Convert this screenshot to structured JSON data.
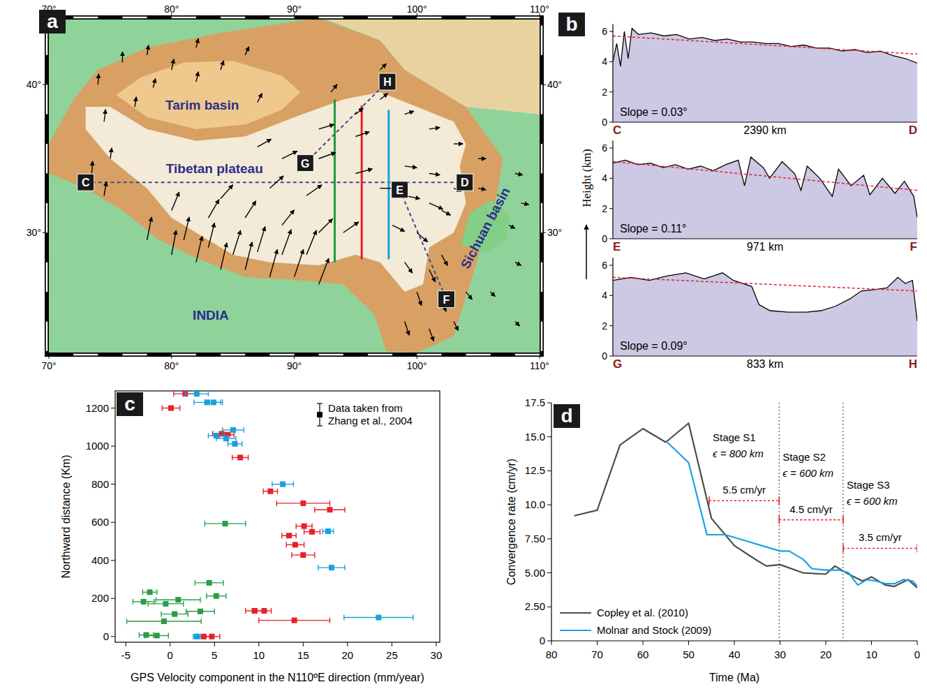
{
  "chart_data": [
    {
      "type": "map",
      "panel": "a",
      "xlim": [
        70,
        110
      ],
      "ylim": [
        21.9,
        44.4
      ],
      "xticks": [
        {
          "value": 70,
          "label": "70°"
        },
        {
          "value": 80,
          "label": "80°"
        },
        {
          "value": 90,
          "label": "90°"
        },
        {
          "value": 100,
          "label": "100°"
        },
        {
          "value": 110,
          "label": "110°"
        }
      ],
      "yticks": [
        {
          "value": 30,
          "label": "30°"
        },
        {
          "value": 40,
          "label": "40°"
        }
      ],
      "labels": [
        {
          "text": "Tarim basin",
          "lon": 82.5,
          "lat": 38.6
        },
        {
          "text": "Tibetan plateau",
          "lon": 83.5,
          "lat": 34.3
        },
        {
          "text": "INDIA",
          "lon": 83.2,
          "lat": 24.4
        },
        {
          "text": "Sichuan basin",
          "lon": 105.6,
          "lat": 30.3
        }
      ],
      "sections": [
        {
          "start": "C",
          "end": "D",
          "lon": [
            73.0,
            103.9
          ],
          "lat": [
            33.4,
            33.4
          ]
        },
        {
          "start": "E",
          "end": "F",
          "lon": [
            98.6,
            102.4
          ],
          "lat": [
            32.9,
            25.5
          ]
        },
        {
          "start": "G",
          "end": "H",
          "lon": [
            90.9,
            97.6
          ],
          "lat": [
            34.7,
            40.2
          ]
        }
      ],
      "profiles": [
        {
          "color": "#1f9a3e",
          "lon": 93.3,
          "lat": [
            28.0,
            39.0
          ]
        },
        {
          "color": "#e8202a",
          "lon": 95.5,
          "lat": [
            28.2,
            38.6
          ]
        },
        {
          "color": "#1aa0dc",
          "lon": 97.7,
          "lat": [
            28.2,
            38.3
          ]
        }
      ],
      "vectors": {
        "lon": [
          74,
          76,
          78,
          80,
          82,
          84,
          86,
          74.5,
          77,
          78.5,
          82,
          87,
          73.5,
          75,
          74.5,
          78,
          80,
          82,
          84,
          86,
          88,
          90,
          92,
          81,
          83,
          85,
          87,
          89,
          91,
          80,
          83,
          86,
          89,
          92,
          94,
          84,
          88,
          91,
          87,
          89,
          92,
          95,
          92,
          95,
          97,
          99,
          101,
          98,
          100,
          102,
          99,
          101,
          103,
          99,
          101,
          100,
          102,
          99,
          101,
          103,
          102,
          104,
          95,
          97,
          99,
          101,
          103,
          93,
          97,
          105,
          108.5,
          107.5,
          108,
          106,
          108,
          105,
          108
        ],
        "lat": [
          40,
          41.5,
          42,
          41,
          42.5,
          41,
          42,
          37.5,
          38.5,
          39.8,
          40.2,
          38.8,
          34,
          35,
          32.5,
          29.5,
          28.5,
          28,
          27.5,
          27.5,
          27,
          27,
          26.5,
          29.5,
          29,
          28.5,
          28.7,
          28.5,
          28.5,
          31.5,
          31,
          31,
          30.5,
          30,
          30,
          32.3,
          33,
          32.5,
          35.8,
          35,
          35,
          34,
          37,
          36.5,
          33,
          32.5,
          32,
          30.5,
          30,
          31.5,
          34.5,
          34,
          33,
          28,
          27.5,
          26,
          25.5,
          24,
          23.5,
          24,
          28.5,
          26,
          38,
          39,
          38,
          37,
          36,
          39.5,
          41,
          33,
          32,
          30.5,
          28,
          26,
          24,
          35,
          34
        ],
        "east": [
          1,
          0,
          2,
          3,
          3,
          4,
          5,
          2,
          2,
          3,
          3,
          6,
          1,
          2,
          3,
          6,
          6,
          8,
          8,
          9,
          10,
          12,
          13,
          7,
          8,
          10,
          10,
          12,
          13,
          10,
          14,
          14,
          16,
          18,
          20,
          16,
          18,
          20,
          18,
          20,
          22,
          22,
          20,
          18,
          22,
          20,
          18,
          16,
          14,
          12,
          16,
          14,
          10,
          10,
          8,
          6,
          6,
          6,
          6,
          6,
          8,
          8,
          10,
          10,
          12,
          14,
          12,
          8,
          8,
          10,
          10,
          8,
          8,
          6,
          6,
          10,
          10
        ],
        "north": [
          14,
          14,
          13,
          14,
          12,
          12,
          11,
          16,
          13,
          12,
          13,
          12,
          16,
          14,
          18,
          30,
          32,
          34,
          35,
          36,
          36,
          36,
          34,
          30,
          32,
          32,
          33,
          33,
          32,
          24,
          24,
          22,
          20,
          18,
          14,
          18,
          16,
          14,
          10,
          10,
          8,
          6,
          6,
          6,
          0,
          -4,
          -8,
          -8,
          -12,
          -6,
          -2,
          -2,
          -4,
          -14,
          -16,
          -18,
          -16,
          -18,
          -16,
          -12,
          -14,
          -10,
          8,
          8,
          4,
          2,
          0,
          10,
          8,
          -2,
          -2,
          -4,
          -4,
          -6,
          -6,
          0,
          -2
        ]
      }
    },
    {
      "type": "area",
      "panel": "b",
      "y_label": "Height (km)",
      "color": "#cdc8e4",
      "ylim": [
        0,
        6.5
      ],
      "yticks": [
        0,
        2,
        4,
        6
      ],
      "series": [
        {
          "start": "C",
          "end": "D",
          "distance_label": "2390 km",
          "slope_label": "Slope = 0.03°",
          "xlim": [
            0,
            2390
          ],
          "x": [
            0,
            30,
            60,
            90,
            120,
            150,
            200,
            300,
            400,
            500,
            600,
            700,
            800,
            900,
            1000,
            1100,
            1200,
            1300,
            1400,
            1500,
            1600,
            1700,
            1800,
            1900,
            2000,
            2100,
            2200,
            2300,
            2390
          ],
          "values": [
            4.0,
            5.2,
            3.7,
            6.0,
            4.2,
            6.2,
            5.8,
            5.9,
            5.7,
            5.8,
            5.5,
            5.6,
            5.4,
            5.5,
            5.3,
            5.3,
            5.2,
            5.2,
            5.0,
            5.1,
            4.9,
            4.9,
            4.7,
            4.8,
            4.6,
            4.7,
            4.4,
            4.2,
            3.9
          ],
          "trend": [
            5.7,
            4.5
          ]
        },
        {
          "start": "E",
          "end": "F",
          "distance_label": "971 km",
          "slope_label": "Slope = 0.11°",
          "xlim": [
            0,
            971
          ],
          "x": [
            0,
            40,
            80,
            120,
            160,
            200,
            240,
            280,
            320,
            360,
            400,
            420,
            440,
            480,
            500,
            540,
            580,
            600,
            620,
            660,
            700,
            720,
            760,
            800,
            820,
            860,
            900,
            930,
            960,
            971
          ],
          "values": [
            5.0,
            5.2,
            4.9,
            5.0,
            4.7,
            4.9,
            4.6,
            4.8,
            4.5,
            4.9,
            5.2,
            3.5,
            5.4,
            4.7,
            4.0,
            5.1,
            4.3,
            3.2,
            4.8,
            4.0,
            2.8,
            4.6,
            3.5,
            4.2,
            2.9,
            4.0,
            3.0,
            3.8,
            2.8,
            1.4
          ],
          "trend": [
            5.1,
            3.2
          ]
        },
        {
          "start": "G",
          "end": "H",
          "distance_label": "833 km",
          "slope_label": "Slope = 0.09°",
          "xlim": [
            0,
            833
          ],
          "x": [
            0,
            50,
            100,
            150,
            200,
            250,
            300,
            330,
            380,
            400,
            430,
            480,
            530,
            570,
            610,
            650,
            680,
            720,
            750,
            780,
            800,
            820,
            833
          ],
          "values": [
            5.0,
            5.2,
            5.0,
            5.3,
            5.5,
            5.1,
            5.5,
            5.0,
            4.6,
            3.4,
            3.0,
            2.9,
            2.9,
            3.0,
            3.3,
            3.8,
            4.3,
            4.4,
            4.5,
            5.2,
            4.8,
            5.0,
            2.3
          ],
          "trend": [
            5.2,
            4.3
          ]
        }
      ]
    },
    {
      "type": "scatter",
      "panel": "c",
      "x_label": "GPS Velocity component in the N110ºE direction (mm/year)",
      "y_label": "Northward distance (Km)",
      "xlim": [
        -6.2,
        30.4
      ],
      "ylim": [
        -30,
        1290
      ],
      "xticks": [
        -5,
        0,
        5,
        10,
        15,
        20,
        25,
        30
      ],
      "yticks": [
        0,
        200,
        400,
        600,
        800,
        1000,
        1200
      ],
      "legend": "upper right",
      "legend_text": "Data taken from Zhang et al., 2004",
      "series": [
        {
          "color": "#2a9d45",
          "marker": "square",
          "x": [
            6.2,
            4.4,
            5.2,
            -2.3,
            -3.0,
            0.9,
            -0.5,
            0.5,
            3.4,
            -0.7,
            -2.7,
            -1.5
          ],
          "x_errors": [
            2.3,
            1.6,
            1.1,
            0.8,
            1.2,
            2.5,
            2.0,
            1.5,
            1.6,
            4.2,
            0.8,
            1.3
          ],
          "values": [
            593,
            282,
            213,
            233,
            183,
            193,
            172,
            118,
            132,
            80,
            8,
            5
          ]
        },
        {
          "color": "#e8202a",
          "marker": "square",
          "x": [
            1.7,
            0.1,
            5.8,
            6.4,
            7.9,
            11.3,
            15.0,
            18.0,
            15.1,
            16.0,
            13.4,
            14.1,
            15.0,
            9.5,
            10.6,
            14.0,
            3.8,
            4.7
          ],
          "x_errors": [
            1.3,
            1.0,
            1.0,
            0.8,
            0.9,
            0.8,
            3.0,
            1.7,
            0.9,
            0.9,
            0.8,
            1.0,
            1.3,
            1.0,
            0.8,
            4.0,
            0.8,
            0.9
          ],
          "values": [
            1275,
            1200,
            1065,
            1060,
            940,
            763,
            700,
            666,
            580,
            550,
            530,
            482,
            428,
            135,
            135,
            85,
            0,
            0
          ]
        },
        {
          "color": "#1aa0dc",
          "marker": "square",
          "x": [
            3.0,
            4.2,
            4.9,
            7.1,
            5.2,
            6.3,
            7.3,
            12.7,
            17.8,
            18.2,
            23.5,
            3.0
          ],
          "x_errors": [
            1.3,
            1.5,
            1.0,
            1.2,
            0.9,
            1.1,
            0.8,
            1.2,
            0.6,
            1.5,
            3.9,
            0.4
          ],
          "values": [
            1275,
            1230,
            1230,
            1085,
            1055,
            1040,
            1012,
            800,
            553,
            362,
            100,
            0
          ]
        }
      ]
    },
    {
      "type": "line",
      "panel": "d",
      "x_label": "Time (Ma)",
      "y_label": "Convergence rate (cm/yr)",
      "xlim": [
        80,
        0
      ],
      "ylim": [
        0,
        17.5
      ],
      "xticks": [
        80,
        70,
        60,
        50,
        40,
        30,
        20,
        10,
        0
      ],
      "yticks": [
        0,
        {
          "value": 2.5,
          "label": "2.50"
        },
        {
          "value": 5,
          "label": "5.00"
        },
        {
          "value": 7.5,
          "label": "7.50"
        },
        {
          "value": 10,
          "label": "10.0"
        },
        12.5,
        {
          "value": 15,
          "label": "15.0"
        },
        17.5
      ],
      "legend": "lower left",
      "series": [
        {
          "name": "Copley et al. (2010)",
          "color": "#4d4d4d",
          "x": [
            75,
            70,
            65,
            60,
            55,
            50,
            45,
            40,
            35,
            33,
            30,
            25,
            20,
            18,
            15,
            12,
            10,
            7,
            5,
            2,
            0
          ],
          "values": [
            9.2,
            9.6,
            14.4,
            15.6,
            14.6,
            16.0,
            9.0,
            7.0,
            5.9,
            5.5,
            5.6,
            5.0,
            4.9,
            5.5,
            4.9,
            4.4,
            4.7,
            4.1,
            4.0,
            4.5,
            3.9
          ]
        },
        {
          "name": "Molnar and Stock (2009)",
          "color": "#1ba1e2",
          "x": [
            55,
            50,
            46,
            42,
            38,
            34,
            30,
            28,
            25,
            23,
            20,
            17,
            15,
            13,
            11,
            9,
            7,
            5,
            3,
            1,
            0
          ],
          "values": [
            14.7,
            13.1,
            7.8,
            7.8,
            7.4,
            7.0,
            6.6,
            6.6,
            6.0,
            5.3,
            5.2,
            5.2,
            5.0,
            4.1,
            4.5,
            4.4,
            4.2,
            4.2,
            4.5,
            4.4,
            4.0
          ]
        }
      ],
      "stage_boundaries": [
        30.2,
        16.2
      ],
      "stages": [
        {
          "label": "Stage S1",
          "epsilon": "ϵ = 800 km",
          "rate_label": "5.5 cm/yr",
          "x": [
            45.5,
            30.2
          ],
          "y": 10.3
        },
        {
          "label": "Stage S2",
          "epsilon": "ϵ = 600 km",
          "rate_label": "4.5 cm/yr",
          "x": [
            30.2,
            16.2
          ],
          "y": 8.9
        },
        {
          "label": "Stage S3",
          "epsilon": "ϵ = 600 km",
          "rate_label": "3.5 cm/yr",
          "x": [
            16.2,
            0
          ],
          "y": 6.8
        }
      ]
    }
  ]
}
